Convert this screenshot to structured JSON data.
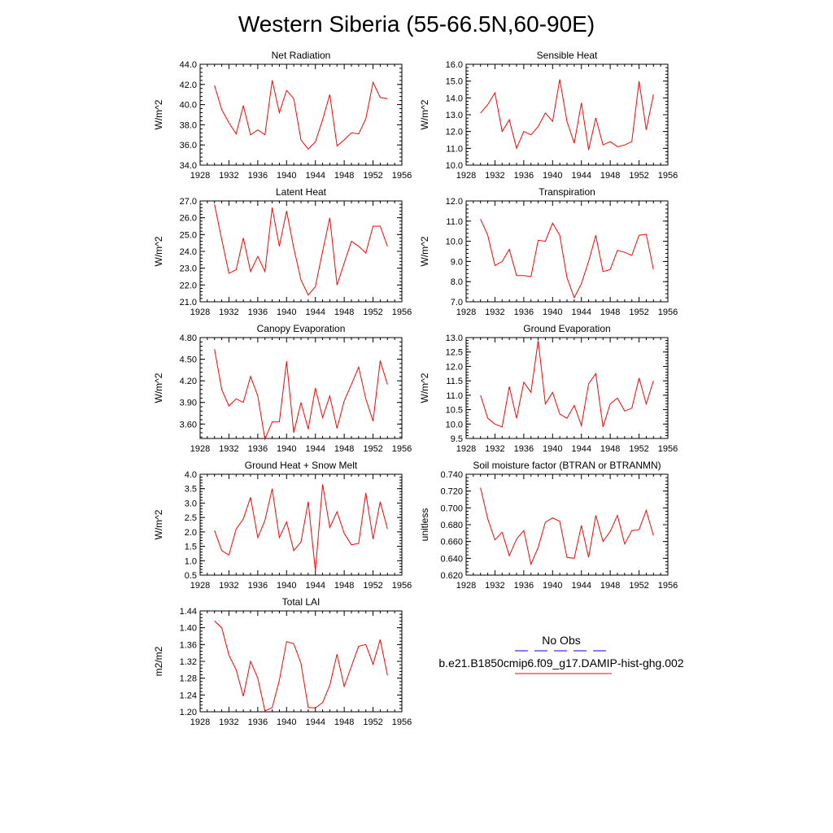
{
  "title": "Western Siberia (55-66.5N,60-90E)",
  "legend": {
    "obs_label": "No Obs",
    "model_label": "b.e21.B1850cmip6.f09_g17.DAMIP-hist-ghg.002",
    "obs_color": "#0000ff",
    "model_color": "#ff0000"
  },
  "chart_data": [
    {
      "type": "line",
      "title": "Net Radiation",
      "ylabel": "W/m^2",
      "xlim": [
        1928,
        1956
      ],
      "ylim": [
        34,
        44
      ],
      "xticks": [
        "1928",
        "1932",
        "1936",
        "1940",
        "1944",
        "1948",
        "1952",
        "1956"
      ],
      "yticks": [
        "34.0",
        "36.0",
        "38.0",
        "40.0",
        "42.0",
        "44.0"
      ],
      "series": [
        {
          "color": "#ff0000",
          "x": [
            1930,
            1931,
            1932,
            1933,
            1934,
            1935,
            1936,
            1937,
            1938,
            1939,
            1940,
            1941,
            1942,
            1943,
            1944,
            1945,
            1946,
            1947,
            1948,
            1949,
            1950,
            1951,
            1952,
            1953,
            1954
          ],
          "values": [
            41.9,
            39.5,
            38.2,
            37.1,
            39.9,
            37.0,
            37.5,
            37.0,
            42.4,
            39.2,
            41.4,
            40.6,
            36.5,
            35.6,
            36.3,
            38.5,
            41.0,
            35.9,
            36.5,
            37.2,
            37.1,
            38.6,
            42.2,
            40.7,
            40.6
          ]
        }
      ]
    },
    {
      "type": "line",
      "title": "Sensible Heat",
      "ylabel": "W/m^2",
      "xlim": [
        1928,
        1956
      ],
      "ylim": [
        10,
        16
      ],
      "xticks": [
        "1928",
        "1932",
        "1936",
        "1940",
        "1944",
        "1948",
        "1952",
        "1956"
      ],
      "yticks": [
        "10.0",
        "11.0",
        "12.0",
        "13.0",
        "14.0",
        "15.0",
        "16.0"
      ],
      "series": [
        {
          "color": "#ff0000",
          "x": [
            1930,
            1931,
            1932,
            1933,
            1934,
            1935,
            1936,
            1937,
            1938,
            1939,
            1940,
            1941,
            1942,
            1943,
            1944,
            1945,
            1946,
            1947,
            1948,
            1949,
            1950,
            1951,
            1952,
            1953,
            1954
          ],
          "values": [
            13.1,
            13.6,
            14.3,
            12.0,
            12.7,
            11.0,
            12.0,
            11.8,
            12.3,
            13.1,
            12.6,
            15.1,
            12.6,
            11.3,
            13.7,
            10.9,
            12.8,
            11.2,
            11.4,
            11.1,
            11.2,
            11.4,
            15.0,
            12.1,
            14.2
          ]
        }
      ]
    },
    {
      "type": "line",
      "title": "Latent Heat",
      "ylabel": "W/m^2",
      "xlim": [
        1928,
        1956
      ],
      "ylim": [
        21,
        27
      ],
      "xticks": [
        "1928",
        "1932",
        "1936",
        "1940",
        "1944",
        "1948",
        "1952",
        "1956"
      ],
      "yticks": [
        "21.0",
        "22.0",
        "23.0",
        "24.0",
        "25.0",
        "26.0",
        "27.0"
      ],
      "series": [
        {
          "color": "#ff0000",
          "x": [
            1930,
            1931,
            1932,
            1933,
            1934,
            1935,
            1936,
            1937,
            1938,
            1939,
            1940,
            1941,
            1942,
            1943,
            1944,
            1945,
            1946,
            1947,
            1948,
            1949,
            1950,
            1951,
            1952,
            1953,
            1954
          ],
          "values": [
            26.8,
            24.7,
            22.7,
            22.9,
            24.8,
            22.8,
            23.7,
            22.8,
            26.6,
            24.3,
            26.4,
            24.2,
            22.3,
            21.4,
            21.9,
            24.0,
            26.0,
            22.0,
            23.3,
            24.6,
            24.3,
            23.9,
            25.5,
            25.5,
            24.3
          ]
        }
      ]
    },
    {
      "type": "line",
      "title": "Transpiration",
      "ylabel": "W/m^2",
      "xlim": [
        1928,
        1956
      ],
      "ylim": [
        7,
        12
      ],
      "xticks": [
        "1928",
        "1932",
        "1936",
        "1940",
        "1944",
        "1948",
        "1952",
        "1956"
      ],
      "yticks": [
        "7.0",
        "8.0",
        "9.0",
        "10.0",
        "11.0",
        "12.0"
      ],
      "series": [
        {
          "color": "#ff0000",
          "x": [
            1930,
            1931,
            1932,
            1933,
            1934,
            1935,
            1936,
            1937,
            1938,
            1939,
            1940,
            1941,
            1942,
            1943,
            1944,
            1945,
            1946,
            1947,
            1948,
            1949,
            1950,
            1951,
            1952,
            1953,
            1954
          ],
          "values": [
            11.1,
            10.3,
            8.8,
            9.0,
            9.6,
            8.3,
            8.3,
            8.25,
            10.05,
            10.0,
            10.9,
            10.3,
            8.2,
            7.2,
            7.9,
            9.0,
            10.3,
            8.5,
            8.6,
            9.55,
            9.45,
            9.3,
            10.3,
            10.35,
            8.6
          ]
        }
      ]
    },
    {
      "type": "line",
      "title": "Canopy Evaporation",
      "ylabel": "W/m^2",
      "xlim": [
        1928,
        1956
      ],
      "ylim": [
        3.4,
        4.8
      ],
      "xticks": [
        "1928",
        "1932",
        "1936",
        "1940",
        "1944",
        "1948",
        "1952",
        "1956"
      ],
      "yticks": [
        "3.60",
        "3.90",
        "4.20",
        "4.50",
        "4.80"
      ],
      "ytickvals": [
        3.6,
        3.9,
        4.2,
        4.5,
        4.8
      ],
      "series": [
        {
          "color": "#ff0000",
          "x": [
            1930,
            1931,
            1932,
            1933,
            1934,
            1935,
            1936,
            1937,
            1938,
            1939,
            1940,
            1941,
            1942,
            1943,
            1944,
            1945,
            1946,
            1947,
            1948,
            1949,
            1950,
            1951,
            1952,
            1953,
            1954
          ],
          "values": [
            4.64,
            4.08,
            3.85,
            3.95,
            3.9,
            4.26,
            3.99,
            3.39,
            3.63,
            3.63,
            4.47,
            3.48,
            3.9,
            3.53,
            4.1,
            3.69,
            3.99,
            3.54,
            3.92,
            4.15,
            4.39,
            3.95,
            3.64,
            4.48,
            4.15
          ]
        }
      ]
    },
    {
      "type": "line",
      "title": "Ground Evaporation",
      "ylabel": "W/m^2",
      "xlim": [
        1928,
        1956
      ],
      "ylim": [
        9.5,
        13.0
      ],
      "xticks": [
        "1928",
        "1932",
        "1936",
        "1940",
        "1944",
        "1948",
        "1952",
        "1956"
      ],
      "yticks": [
        "9.5",
        "10.0",
        "10.5",
        "11.0",
        "11.5",
        "12.0",
        "12.5",
        "13.0"
      ],
      "series": [
        {
          "color": "#ff0000",
          "x": [
            1930,
            1931,
            1932,
            1933,
            1934,
            1935,
            1936,
            1937,
            1938,
            1939,
            1940,
            1941,
            1942,
            1943,
            1944,
            1945,
            1946,
            1947,
            1948,
            1949,
            1950,
            1951,
            1952,
            1953,
            1954
          ],
          "values": [
            11.0,
            10.2,
            10.0,
            9.9,
            11.3,
            10.2,
            11.45,
            11.1,
            12.9,
            10.7,
            11.1,
            10.35,
            10.2,
            10.65,
            9.95,
            11.4,
            11.75,
            9.9,
            10.7,
            10.9,
            10.45,
            10.55,
            11.6,
            10.7,
            11.5
          ]
        }
      ]
    },
    {
      "type": "line",
      "title": "Ground Heat + Snow Melt",
      "ylabel": "W/m^2",
      "xlim": [
        1928,
        1956
      ],
      "ylim": [
        0.5,
        4.0
      ],
      "xticks": [
        "1928",
        "1932",
        "1936",
        "1940",
        "1944",
        "1948",
        "1952",
        "1956"
      ],
      "yticks": [
        "0.5",
        "1.0",
        "1.5",
        "2.0",
        "2.5",
        "3.0",
        "3.5",
        "4.0"
      ],
      "series": [
        {
          "color": "#ff0000",
          "x": [
            1930,
            1931,
            1932,
            1933,
            1934,
            1935,
            1936,
            1937,
            1938,
            1939,
            1940,
            1941,
            1942,
            1943,
            1944,
            1945,
            1946,
            1947,
            1948,
            1949,
            1950,
            1951,
            1952,
            1953,
            1954
          ],
          "values": [
            2.05,
            1.35,
            1.2,
            2.1,
            2.45,
            3.2,
            1.8,
            2.4,
            3.5,
            1.8,
            2.35,
            1.35,
            1.65,
            3.05,
            0.65,
            3.65,
            2.15,
            2.7,
            1.95,
            1.55,
            1.6,
            3.35,
            1.75,
            3.05,
            2.1
          ]
        }
      ]
    },
    {
      "type": "line",
      "title": "Soil moisture factor (BTRAN or BTRANMN)",
      "ylabel": "unitless",
      "xlim": [
        1928,
        1956
      ],
      "ylim": [
        0.62,
        0.74
      ],
      "xticks": [
        "1928",
        "1932",
        "1936",
        "1940",
        "1944",
        "1948",
        "1952",
        "1956"
      ],
      "yticks": [
        "0.620",
        "0.640",
        "0.660",
        "0.680",
        "0.700",
        "0.720",
        "0.740"
      ],
      "series": [
        {
          "color": "#ff0000",
          "x": [
            1930,
            1931,
            1932,
            1933,
            1934,
            1935,
            1936,
            1937,
            1938,
            1939,
            1940,
            1941,
            1942,
            1943,
            1944,
            1945,
            1946,
            1947,
            1948,
            1949,
            1950,
            1951,
            1952,
            1953,
            1954
          ],
          "values": [
            0.724,
            0.687,
            0.662,
            0.671,
            0.643,
            0.663,
            0.673,
            0.633,
            0.653,
            0.683,
            0.688,
            0.684,
            0.641,
            0.64,
            0.679,
            0.641,
            0.691,
            0.66,
            0.672,
            0.691,
            0.657,
            0.673,
            0.674,
            0.697,
            0.667
          ]
        }
      ]
    },
    {
      "type": "line",
      "title": "Total LAI",
      "ylabel": "m2/m2",
      "xlim": [
        1928,
        1956
      ],
      "ylim": [
        1.2,
        1.44
      ],
      "xticks": [
        "1928",
        "1932",
        "1936",
        "1940",
        "1944",
        "1948",
        "1952",
        "1956"
      ],
      "yticks": [
        "1.20",
        "1.24",
        "1.28",
        "1.32",
        "1.36",
        "1.40",
        "1.44"
      ],
      "series": [
        {
          "color": "#ff0000",
          "x": [
            1930,
            1931,
            1932,
            1933,
            1934,
            1935,
            1936,
            1937,
            1938,
            1939,
            1940,
            1941,
            1942,
            1943,
            1944,
            1945,
            1946,
            1947,
            1948,
            1949,
            1950,
            1951,
            1952,
            1953,
            1954
          ],
          "values": [
            1.416,
            1.4,
            1.335,
            1.3,
            1.237,
            1.32,
            1.28,
            1.202,
            1.21,
            1.275,
            1.367,
            1.362,
            1.315,
            1.21,
            1.209,
            1.222,
            1.263,
            1.337,
            1.26,
            1.308,
            1.356,
            1.36,
            1.313,
            1.372,
            1.287
          ]
        }
      ]
    }
  ]
}
